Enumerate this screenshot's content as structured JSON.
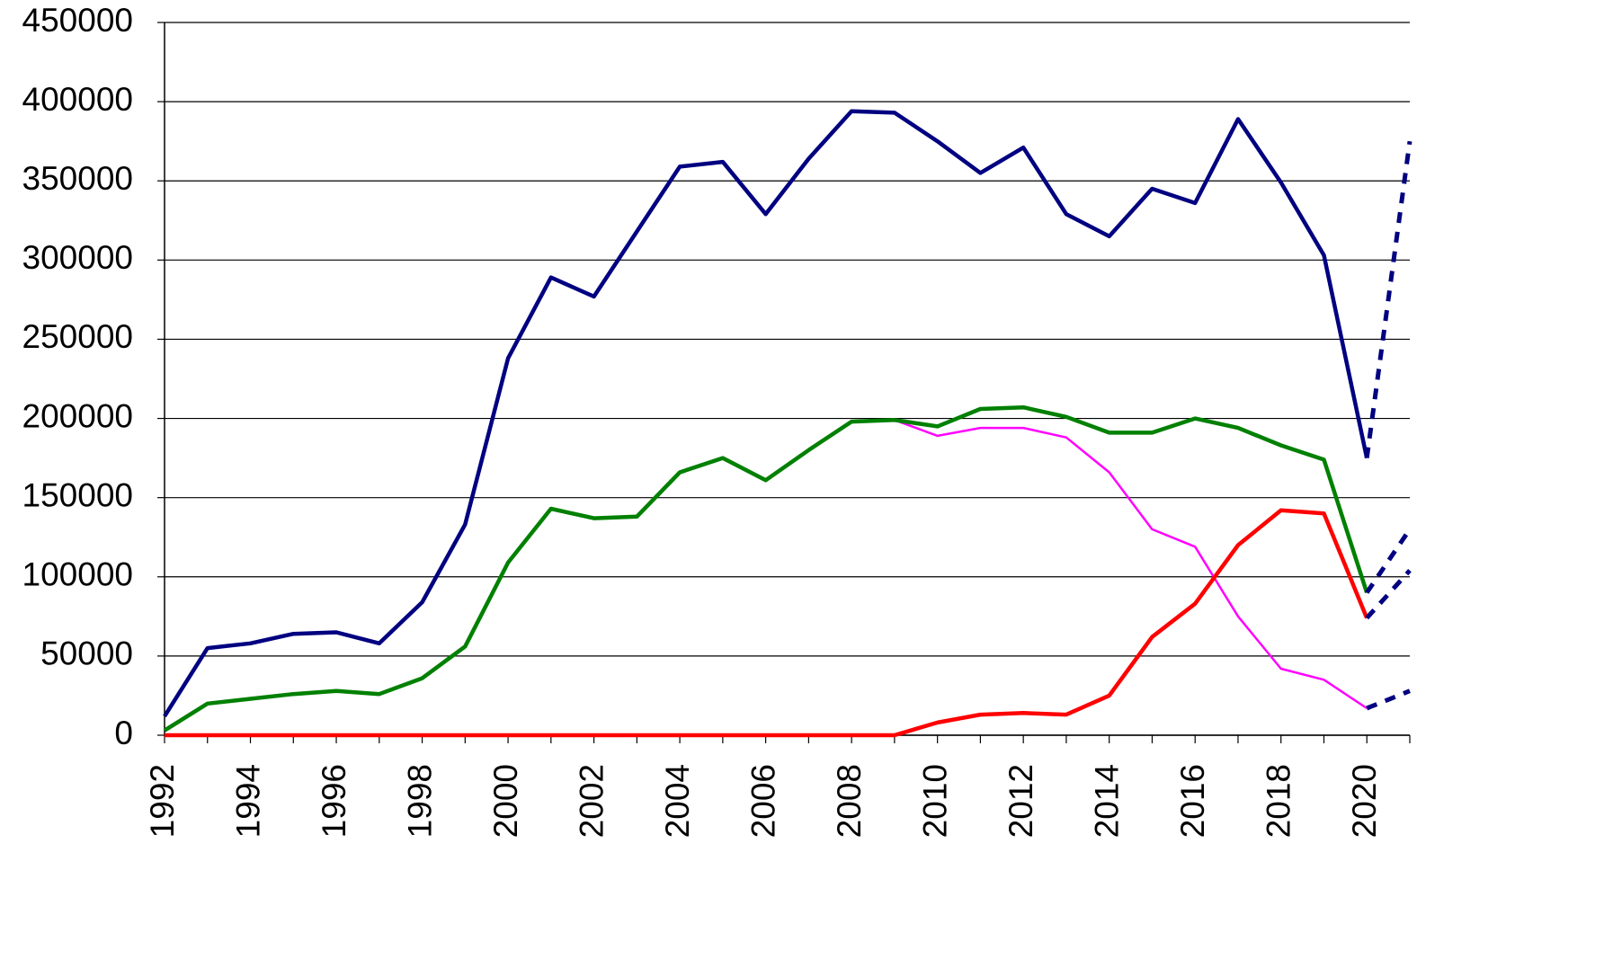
{
  "chart_data": {
    "type": "line",
    "x": [
      1992,
      1993,
      1994,
      1995,
      1996,
      1997,
      1998,
      1999,
      2000,
      2001,
      2002,
      2003,
      2004,
      2005,
      2006,
      2007,
      2008,
      2009,
      2010,
      2011,
      2012,
      2013,
      2014,
      2015,
      2016,
      2017,
      2018,
      2019,
      2020,
      2021
    ],
    "series": [
      {
        "color": "#ff00ff",
        "width": 2.5,
        "dashed": false,
        "values": [
          null,
          null,
          null,
          null,
          null,
          null,
          null,
          null,
          null,
          null,
          null,
          null,
          null,
          null,
          null,
          null,
          null,
          199000,
          189000,
          194000,
          194000,
          188000,
          166000,
          130000,
          119000,
          75000,
          42000,
          35000,
          17000,
          null
        ]
      },
      {
        "color": "#008000",
        "width": 4.5,
        "dashed": false,
        "values": [
          3000,
          20000,
          23000,
          26000,
          28000,
          26000,
          36000,
          56000,
          109000,
          143000,
          137000,
          138000,
          166000,
          175000,
          161000,
          180000,
          198000,
          199000,
          195000,
          206000,
          207000,
          201000,
          191000,
          191000,
          200000,
          194000,
          183000,
          174000,
          90000,
          null
        ]
      },
      {
        "color": "#ff0000",
        "width": 4.5,
        "dashed": false,
        "values": [
          0,
          0,
          0,
          0,
          0,
          0,
          0,
          0,
          0,
          0,
          0,
          0,
          0,
          0,
          0,
          0,
          0,
          0,
          8000,
          13000,
          14000,
          13000,
          25000,
          62000,
          83000,
          120000,
          142000,
          140000,
          74000,
          null
        ]
      },
      {
        "color": "#000080",
        "width": 4.5,
        "dashed": false,
        "values": [
          12000,
          55000,
          58000,
          64000,
          65000,
          58000,
          84000,
          133000,
          238000,
          289000,
          277000,
          318000,
          359000,
          362000,
          329000,
          364000,
          394000,
          393000,
          375000,
          355000,
          371000,
          329000,
          315000,
          345000,
          336000,
          389000,
          349000,
          303000,
          175000,
          null
        ]
      },
      {
        "color": "#000080",
        "width": 5,
        "dashed": true,
        "values": [
          null,
          null,
          null,
          null,
          null,
          null,
          null,
          null,
          null,
          null,
          null,
          null,
          null,
          null,
          null,
          null,
          null,
          null,
          null,
          null,
          null,
          null,
          null,
          null,
          null,
          null,
          null,
          null,
          175000,
          375000
        ]
      },
      {
        "color": "#000080",
        "width": 5,
        "dashed": true,
        "values": [
          null,
          null,
          null,
          null,
          null,
          null,
          null,
          null,
          null,
          null,
          null,
          null,
          null,
          null,
          null,
          null,
          null,
          null,
          null,
          null,
          null,
          null,
          null,
          null,
          null,
          null,
          null,
          null,
          90000,
          130000
        ]
      },
      {
        "color": "#000080",
        "width": 5,
        "dashed": true,
        "values": [
          null,
          null,
          null,
          null,
          null,
          null,
          null,
          null,
          null,
          null,
          null,
          null,
          null,
          null,
          null,
          null,
          null,
          null,
          null,
          null,
          null,
          null,
          null,
          null,
          null,
          null,
          null,
          null,
          74000,
          104000
        ]
      },
      {
        "color": "#000080",
        "width": 5,
        "dashed": true,
        "values": [
          null,
          null,
          null,
          null,
          null,
          null,
          null,
          null,
          null,
          null,
          null,
          null,
          null,
          null,
          null,
          null,
          null,
          null,
          null,
          null,
          null,
          null,
          null,
          null,
          null,
          null,
          null,
          null,
          17000,
          28000
        ]
      }
    ],
    "xlim": [
      1992,
      2021
    ],
    "xticks": [
      1992,
      1994,
      1996,
      1998,
      2000,
      2002,
      2004,
      2006,
      2008,
      2010,
      2012,
      2014,
      2016,
      2018,
      2020
    ],
    "ylim": [
      0,
      450000
    ],
    "yticks": [
      0,
      50000,
      100000,
      150000,
      200000,
      250000,
      300000,
      350000,
      400000,
      450000
    ],
    "grid": true
  }
}
